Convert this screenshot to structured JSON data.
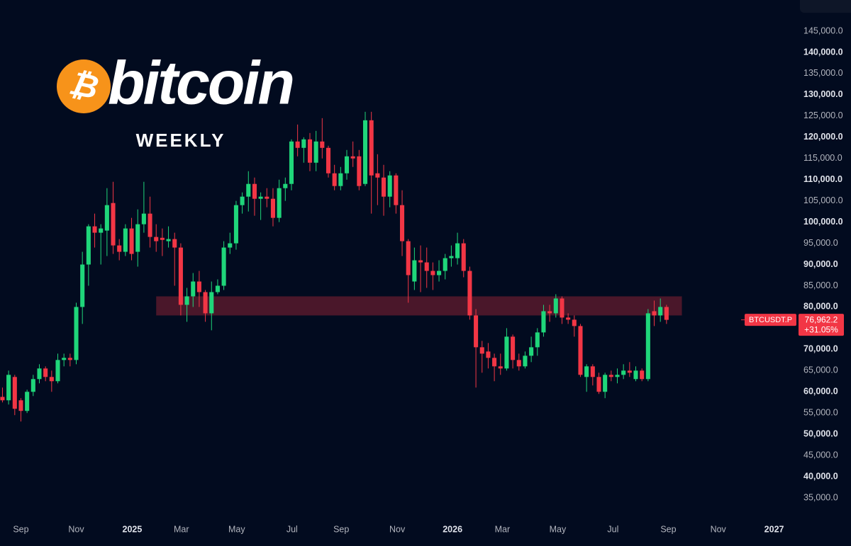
{
  "chart_data": {
    "type": "candlestick",
    "title": "bitcoin",
    "subtitle": "WEEKLY",
    "logo_symbol": "₿",
    "up_color": "#1fd67a",
    "down_color": "#f23645",
    "x": [
      0,
      1,
      2,
      3,
      4,
      5,
      6,
      7,
      8,
      9,
      10,
      11,
      12,
      13,
      14,
      15,
      16,
      17,
      18,
      19,
      20,
      21,
      22,
      23,
      24,
      25,
      26,
      27,
      28,
      29,
      30,
      31,
      32,
      33,
      34,
      35,
      36,
      37,
      38,
      39,
      40,
      41,
      42,
      43,
      44,
      45,
      46,
      47,
      48,
      49,
      50,
      51,
      52,
      53,
      54,
      55,
      56,
      57,
      58,
      59,
      60,
      61,
      62,
      63,
      64,
      65,
      66,
      67,
      68,
      69,
      70,
      71,
      72,
      73,
      74,
      75,
      76,
      77,
      78,
      79,
      80,
      81,
      82,
      83,
      84,
      85,
      86,
      87,
      88,
      89,
      90,
      91,
      92,
      93,
      94,
      95,
      96,
      97,
      98,
      99,
      100,
      101,
      102,
      103,
      104,
      105,
      106,
      107,
      108
    ],
    "open": [
      58800,
      58000,
      63500,
      58000,
      55500,
      60000,
      63000,
      65500,
      63500,
      62500,
      67500,
      68000,
      67500,
      80000,
      90000,
      99000,
      97500,
      98000,
      104500,
      94500,
      93000,
      98500,
      93000,
      99500,
      102000,
      96500,
      96300,
      95500,
      96000,
      94000,
      80500,
      82500,
      86000,
      83500,
      78500,
      83500,
      85000,
      94000,
      95000,
      104000,
      106000,
      109000,
      105500,
      106000,
      105500,
      101000,
      108000,
      109000,
      119000,
      117500,
      119500,
      114000,
      119000,
      117500,
      111500,
      108500,
      111500,
      115500,
      115500,
      109000,
      124000,
      111500,
      110500,
      106000,
      111000,
      104000,
      95500,
      86000,
      91000,
      90500,
      88500,
      87500,
      88500,
      91500,
      91500,
      95000,
      88500,
      78000,
      70500,
      69500,
      68000,
      66000,
      65500,
      73000,
      67500,
      66000,
      68500,
      70500,
      74000,
      79000,
      78500,
      82000,
      77500,
      77000,
      75500,
      63500,
      66000,
      63500,
      60000,
      64000,
      63500,
      64000,
      65000,
      63000,
      65000,
      63000,
      79000,
      78000,
      80000
    ],
    "high": [
      61000,
      65000,
      64000,
      58500,
      60500,
      64000,
      66500,
      66000,
      65000,
      69000,
      69000,
      69000,
      81000,
      93000,
      99500,
      102000,
      99500,
      108000,
      109500,
      96000,
      99500,
      101000,
      103000,
      109500,
      106000,
      99500,
      98500,
      99000,
      97500,
      95000,
      84500,
      88000,
      88500,
      84000,
      86000,
      86500,
      95500,
      97500,
      105000,
      107000,
      112000,
      110500,
      107000,
      108000,
      108000,
      110000,
      110500,
      119500,
      123000,
      120000,
      121000,
      121500,
      124500,
      118000,
      113500,
      113000,
      117000,
      119000,
      117000,
      126000,
      126000,
      116000,
      113500,
      112000,
      111500,
      107500,
      96000,
      94000,
      94500,
      94000,
      90500,
      91000,
      92500,
      94500,
      97500,
      96000,
      89500,
      79500,
      72000,
      71500,
      69000,
      69000,
      75000,
      73500,
      69000,
      69500,
      73000,
      75000,
      80500,
      80500,
      83000,
      82500,
      78500,
      78000,
      76000,
      66500,
      66500,
      64500,
      64500,
      65000,
      65500,
      66500,
      67000,
      66000,
      65500,
      79500,
      81500,
      82000,
      80500
    ],
    "low": [
      57500,
      57000,
      54500,
      53000,
      55000,
      59000,
      62000,
      62500,
      60000,
      62000,
      66000,
      66000,
      66500,
      76000,
      85000,
      94000,
      90000,
      92000,
      92500,
      91000,
      92000,
      91000,
      89500,
      97500,
      94000,
      93000,
      92000,
      94000,
      85000,
      78000,
      76500,
      80000,
      80000,
      76500,
      74500,
      83000,
      84000,
      92500,
      93500,
      102000,
      102500,
      101500,
      100500,
      103500,
      99000,
      100000,
      105000,
      107500,
      115500,
      114000,
      112000,
      112000,
      115000,
      110500,
      107500,
      107500,
      110000,
      113000,
      107500,
      108500,
      102000,
      104000,
      101500,
      103500,
      102000,
      92000,
      81000,
      84000,
      83500,
      84500,
      84000,
      86000,
      86500,
      89500,
      90000,
      87000,
      77000,
      61000,
      64500,
      65500,
      62500,
      64000,
      65000,
      65500,
      65000,
      65500,
      67000,
      68500,
      73000,
      76500,
      77500,
      76000,
      76000,
      73000,
      63500,
      60000,
      61500,
      59500,
      58500,
      62500,
      62000,
      63000,
      63500,
      62500,
      62500,
      62500,
      75500,
      76500,
      76000
    ],
    "close": [
      58000,
      64000,
      56000,
      55500,
      60000,
      63000,
      65500,
      63500,
      62500,
      67500,
      68000,
      67500,
      80000,
      90000,
      99000,
      97500,
      98500,
      104000,
      94500,
      93000,
      98500,
      92500,
      99500,
      102000,
      96500,
      95500,
      95800,
      96000,
      94000,
      80500,
      82500,
      86000,
      83500,
      78500,
      83500,
      85000,
      94000,
      95000,
      104000,
      106000,
      109000,
      105500,
      106000,
      105500,
      101000,
      108000,
      109000,
      119000,
      117500,
      119500,
      114000,
      119000,
      117500,
      111500,
      108500,
      111500,
      115500,
      115000,
      108500,
      124000,
      111000,
      110500,
      106000,
      111000,
      104000,
      95500,
      87500,
      91000,
      90500,
      88500,
      87500,
      88500,
      91500,
      92000,
      95000,
      88500,
      78000,
      70500,
      69000,
      68000,
      66000,
      65500,
      73000,
      67500,
      66000,
      68500,
      70500,
      74000,
      79000,
      78500,
      82000,
      77500,
      77000,
      75500,
      64000,
      66000,
      63500,
      60000,
      64000,
      63500,
      64000,
      65000,
      64500,
      65000,
      63000,
      78500,
      78000,
      80000,
      76962.2
    ],
    "xlim": [
      -0.4,
      128.2
    ],
    "xticks": [
      {
        "value": 3.0,
        "label": "Sep"
      },
      {
        "value": 12.0,
        "label": "Nov"
      },
      {
        "value": 21.1,
        "label": "2025"
      },
      {
        "value": 29.1,
        "label": "Mar"
      },
      {
        "value": 38.1,
        "label": "May"
      },
      {
        "value": 47.1,
        "label": "Jul"
      },
      {
        "value": 55.1,
        "label": "Sep"
      },
      {
        "value": 64.2,
        "label": "Nov"
      },
      {
        "value": 73.2,
        "label": "2026"
      },
      {
        "value": 81.3,
        "label": "Mar"
      },
      {
        "value": 90.3,
        "label": "May"
      },
      {
        "value": 99.3,
        "label": "Jul"
      },
      {
        "value": 108.3,
        "label": "Sep"
      },
      {
        "value": 116.4,
        "label": "Nov"
      },
      {
        "value": 125.5,
        "label": "2027"
      }
    ],
    "ylim": [
      30500,
      152350
    ],
    "yticks": [
      {
        "value": 35000,
        "label": "35,000.0"
      },
      {
        "value": 40000,
        "label": "40,000.0"
      },
      {
        "value": 45000,
        "label": "45,000.0"
      },
      {
        "value": 50000,
        "label": "50,000.0"
      },
      {
        "value": 55000,
        "label": "55,000.0"
      },
      {
        "value": 60000,
        "label": "60,000.0"
      },
      {
        "value": 65000,
        "label": "65,000.0"
      },
      {
        "value": 70000,
        "label": "70,000.0"
      },
      {
        "value": 75000,
        "label": "75,000.0"
      },
      {
        "value": 80000,
        "label": "80,000.0"
      },
      {
        "value": 85000,
        "label": "85,000.0"
      },
      {
        "value": 90000,
        "label": "90,000.0"
      },
      {
        "value": 95000,
        "label": "95,000.0"
      },
      {
        "value": 100000,
        "label": "100,000.0"
      },
      {
        "value": 105000,
        "label": "105,000.0"
      },
      {
        "value": 110000,
        "label": "110,000.0"
      },
      {
        "value": 115000,
        "label": "115,000.0"
      },
      {
        "value": 120000,
        "label": "120,000.0"
      },
      {
        "value": 125000,
        "label": "125,000.0"
      },
      {
        "value": 130000,
        "label": "130,000.0"
      },
      {
        "value": 135000,
        "label": "135,000.0"
      },
      {
        "value": 140000,
        "label": "140,000.0"
      },
      {
        "value": 145000,
        "label": "145,000.0"
      }
    ],
    "zone": {
      "x": [
        25,
        110.5
      ],
      "y": [
        78000,
        82500
      ],
      "color": "#f23645"
    },
    "price_tag": {
      "symbol": "BTCUSDT.P",
      "value": 76962.2,
      "value_label": "76,962.2",
      "change": 31.05,
      "change_label": "+31.05%"
    }
  }
}
